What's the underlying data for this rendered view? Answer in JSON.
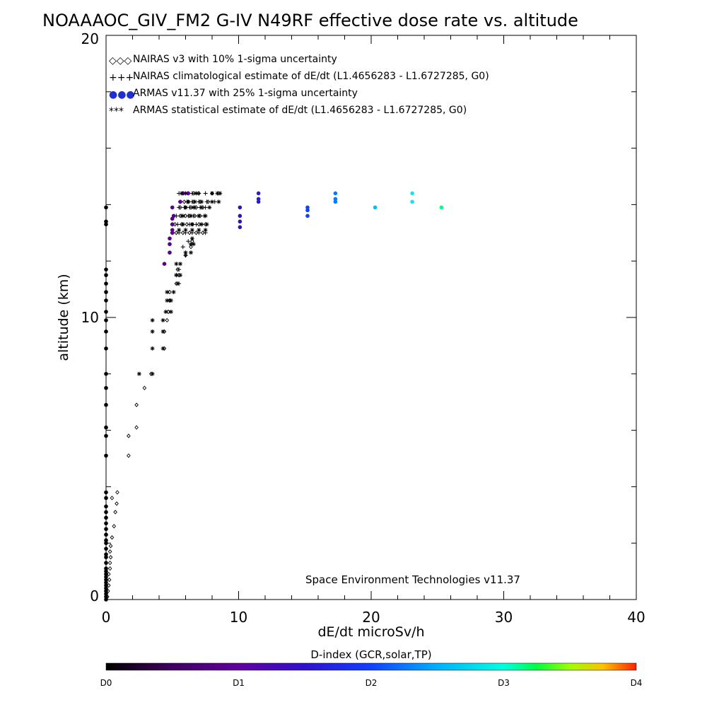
{
  "chart_data": {
    "type": "scatter",
    "title": "NOAAAOC_GIV_FM2 G-IV   N49RF  effective dose rate vs. altitude",
    "xlabel": "dE/dt microSv/h",
    "ylabel": "altitude (km)",
    "xlim": [
      0,
      40
    ],
    "ylim": [
      0,
      20
    ],
    "x_ticks": [
      "0",
      "10",
      "20",
      "30",
      "40"
    ],
    "y_ticks": [
      "0",
      "10",
      "20"
    ],
    "credit": "Space Environment Technologies v11.37",
    "legend_position": "top-left",
    "legend": [
      {
        "symbol": "◇◇◇",
        "label": "NAIRAS v3 with 10% 1-sigma uncertainty"
      },
      {
        "symbol": "+++",
        "label": "NAIRAS climatological estimate of dE/dt (L1.4656283 - L1.6727285, G0)"
      },
      {
        "symbol": "●●●",
        "label": "ARMAS v11.37 with 25% 1-sigma uncertainty"
      },
      {
        "symbol": "***",
        "label": "ARMAS statistical estimate of dE/dt (L1.4656283 - L1.6727285, G0)"
      }
    ],
    "series": [
      {
        "name": "NAIRAS v3 with 10% 1-sigma uncertainty",
        "marker": "diamond",
        "color": "#000000",
        "points": [
          [
            0.1,
            0.1
          ],
          [
            0.15,
            0.3
          ],
          [
            0.2,
            0.5
          ],
          [
            0.25,
            0.7
          ],
          [
            0.2,
            0.9
          ],
          [
            0.3,
            1.1
          ],
          [
            0.3,
            1.3
          ],
          [
            0.35,
            1.5
          ],
          [
            0.3,
            1.7
          ],
          [
            0.35,
            1.9
          ],
          [
            0.45,
            2.2
          ],
          [
            0.6,
            2.6
          ],
          [
            0.7,
            3.1
          ],
          [
            0.8,
            3.4
          ],
          [
            0.85,
            3.8
          ],
          [
            0.45,
            3.6
          ],
          [
            1.7,
            5.1
          ],
          [
            1.7,
            5.8
          ],
          [
            2.3,
            6.1
          ],
          [
            2.3,
            6.9
          ],
          [
            2.9,
            7.5
          ],
          [
            3.4,
            8.0
          ],
          [
            4.4,
            8.9
          ],
          [
            4.4,
            9.5
          ],
          [
            4.6,
            9.9
          ],
          [
            4.7,
            10.2
          ],
          [
            4.8,
            10.6
          ],
          [
            4.8,
            10.9
          ],
          [
            5.3,
            11.2
          ],
          [
            5.5,
            11.5
          ],
          [
            5.4,
            11.7
          ],
          [
            6.0,
            12.2
          ],
          [
            6.4,
            12.5
          ],
          [
            6.5,
            12.7
          ],
          [
            5.3,
            13.0
          ],
          [
            5.8,
            13.0
          ],
          [
            6.3,
            13.0
          ],
          [
            6.8,
            13.0
          ],
          [
            7.3,
            13.0
          ],
          [
            5.2,
            13.3
          ],
          [
            5.7,
            13.3
          ],
          [
            6.1,
            13.3
          ],
          [
            6.5,
            13.3
          ],
          [
            7.0,
            13.3
          ],
          [
            7.5,
            13.3
          ],
          [
            5.6,
            13.6
          ],
          [
            6.0,
            13.6
          ],
          [
            6.3,
            13.6
          ],
          [
            6.7,
            13.6
          ],
          [
            7.1,
            13.6
          ],
          [
            5.6,
            13.9
          ],
          [
            6.0,
            13.9
          ],
          [
            6.4,
            13.9
          ],
          [
            6.8,
            13.9
          ],
          [
            7.3,
            13.9
          ],
          [
            5.9,
            14.1
          ],
          [
            6.2,
            14.1
          ],
          [
            6.6,
            14.1
          ],
          [
            7.1,
            14.1
          ],
          [
            7.7,
            14.1
          ],
          [
            5.8,
            14.4
          ],
          [
            6.2,
            14.4
          ],
          [
            6.6,
            14.4
          ],
          [
            7.0,
            14.4
          ],
          [
            8.0,
            14.4
          ],
          [
            8.5,
            14.4
          ]
        ]
      },
      {
        "name": "NAIRAS climatological estimate of dE/dt (L1.4656283 - L1.6727285, G0)",
        "marker": "plus",
        "color": "#000000",
        "points": [
          [
            4.8,
            10.6
          ],
          [
            5.5,
            11.2
          ],
          [
            5.3,
            11.5
          ],
          [
            5.5,
            11.7
          ],
          [
            6.0,
            12.2
          ],
          [
            5.8,
            12.5
          ],
          [
            6.2,
            12.7
          ],
          [
            5.0,
            13.0
          ],
          [
            5.5,
            13.0
          ],
          [
            6.0,
            13.0
          ],
          [
            6.5,
            13.0
          ],
          [
            7.0,
            13.0
          ],
          [
            7.5,
            13.0
          ],
          [
            5.0,
            13.3
          ],
          [
            5.4,
            13.3
          ],
          [
            5.8,
            13.3
          ],
          [
            6.3,
            13.3
          ],
          [
            6.8,
            13.3
          ],
          [
            7.2,
            13.3
          ],
          [
            5.3,
            13.6
          ],
          [
            5.7,
            13.6
          ],
          [
            6.2,
            13.6
          ],
          [
            6.6,
            13.6
          ],
          [
            7.0,
            13.6
          ],
          [
            7.4,
            13.6
          ],
          [
            5.5,
            13.9
          ],
          [
            5.9,
            13.9
          ],
          [
            6.3,
            13.9
          ],
          [
            6.7,
            13.9
          ],
          [
            7.1,
            13.9
          ],
          [
            7.5,
            13.9
          ],
          [
            5.6,
            14.1
          ],
          [
            6.1,
            14.1
          ],
          [
            6.5,
            14.1
          ],
          [
            7.0,
            14.1
          ],
          [
            7.6,
            14.1
          ],
          [
            8.2,
            14.1
          ],
          [
            5.5,
            14.4
          ],
          [
            6.0,
            14.4
          ],
          [
            6.5,
            14.4
          ],
          [
            7.0,
            14.4
          ],
          [
            7.5,
            14.4
          ],
          [
            8.0,
            14.4
          ],
          [
            8.4,
            14.4
          ]
        ]
      },
      {
        "name": "ARMAS v11.37 with 25% 1-sigma uncertainty",
        "marker": "dot",
        "color": "#2020c0",
        "points": [
          [
            0,
            0.0
          ],
          [
            0,
            0.1
          ],
          [
            0,
            0.2
          ],
          [
            0,
            0.3
          ],
          [
            0,
            0.4
          ],
          [
            0,
            0.5
          ],
          [
            0,
            0.6
          ],
          [
            0,
            0.7
          ],
          [
            0,
            0.8
          ],
          [
            0,
            0.9
          ],
          [
            0,
            1.0
          ],
          [
            0,
            1.1
          ],
          [
            0,
            1.3
          ],
          [
            0,
            1.5
          ],
          [
            0,
            1.6
          ],
          [
            0,
            1.8
          ],
          [
            0,
            2.0
          ],
          [
            0,
            2.1
          ],
          [
            0,
            2.3
          ],
          [
            0,
            2.5
          ],
          [
            0,
            2.7
          ],
          [
            0,
            2.9
          ],
          [
            0,
            3.1
          ],
          [
            0,
            3.3
          ],
          [
            0,
            3.6
          ],
          [
            0,
            3.8
          ],
          [
            0,
            5.1
          ],
          [
            0,
            5.8
          ],
          [
            0,
            6.1
          ],
          [
            0,
            6.9
          ],
          [
            0,
            7.5
          ],
          [
            0,
            8.0
          ],
          [
            0,
            8.9
          ],
          [
            0,
            9.5
          ],
          [
            0,
            9.9
          ],
          [
            0,
            10.2
          ],
          [
            0,
            10.6
          ],
          [
            0,
            10.9
          ],
          [
            0,
            11.2
          ],
          [
            0,
            11.5
          ],
          [
            0,
            11.7
          ],
          [
            0,
            13.3
          ],
          [
            0,
            13.4
          ],
          [
            0,
            13.9
          ],
          [
            4.4,
            11.9
          ],
          [
            4.8,
            12.3
          ],
          [
            4.8,
            12.6
          ],
          [
            4.8,
            12.8
          ],
          [
            5.0,
            13.0
          ],
          [
            5.0,
            13.1
          ],
          [
            5.0,
            13.3
          ],
          [
            5.0,
            13.5
          ],
          [
            5.1,
            13.6
          ],
          [
            5.0,
            13.9
          ],
          [
            5.6,
            14.1
          ],
          [
            5.8,
            14.4
          ],
          [
            6.2,
            14.4
          ],
          [
            10.1,
            13.2
          ],
          [
            10.1,
            13.4
          ],
          [
            10.1,
            13.6
          ],
          [
            10.1,
            13.9
          ],
          [
            11.5,
            14.1
          ],
          [
            11.5,
            14.2
          ],
          [
            11.5,
            14.4
          ],
          [
            15.2,
            13.6
          ],
          [
            15.2,
            13.8
          ],
          [
            15.2,
            13.9
          ],
          [
            17.3,
            14.1
          ],
          [
            17.3,
            14.2
          ],
          [
            17.3,
            14.4
          ],
          [
            20.3,
            13.9
          ],
          [
            23.1,
            14.1
          ],
          [
            23.1,
            14.4
          ],
          [
            25.3,
            13.9
          ]
        ]
      },
      {
        "name": "ARMAS statistical estimate of dE/dt (L1.4656283 - L1.6727285, G0)",
        "marker": "asterisk",
        "color": "#000000",
        "points": [
          [
            2.5,
            8.0
          ],
          [
            3.5,
            8.0
          ],
          [
            3.5,
            8.9
          ],
          [
            4.3,
            8.9
          ],
          [
            3.5,
            9.5
          ],
          [
            4.3,
            9.5
          ],
          [
            3.5,
            9.9
          ],
          [
            4.3,
            9.9
          ],
          [
            4.5,
            10.2
          ],
          [
            4.9,
            10.2
          ],
          [
            4.6,
            10.6
          ],
          [
            4.9,
            10.6
          ],
          [
            4.6,
            10.9
          ],
          [
            5.1,
            10.9
          ],
          [
            5.4,
            11.2
          ],
          [
            5.3,
            11.5
          ],
          [
            5.6,
            11.5
          ],
          [
            5.3,
            11.9
          ],
          [
            5.6,
            11.9
          ],
          [
            6.0,
            12.3
          ],
          [
            6.4,
            12.3
          ],
          [
            6.4,
            12.6
          ],
          [
            6.6,
            12.6
          ],
          [
            6.5,
            12.8
          ],
          [
            6.5,
            13.1
          ],
          [
            5.5,
            13.1
          ],
          [
            6.0,
            13.1
          ],
          [
            7.0,
            13.1
          ],
          [
            7.5,
            13.1
          ],
          [
            5.8,
            13.3
          ],
          [
            6.5,
            13.3
          ],
          [
            7.2,
            13.3
          ],
          [
            7.6,
            13.3
          ],
          [
            5.8,
            13.6
          ],
          [
            6.4,
            13.6
          ],
          [
            7.0,
            13.6
          ],
          [
            7.5,
            13.6
          ],
          [
            6.0,
            13.9
          ],
          [
            6.6,
            13.9
          ],
          [
            7.2,
            13.9
          ],
          [
            7.8,
            13.9
          ],
          [
            6.2,
            14.1
          ],
          [
            6.7,
            14.1
          ],
          [
            7.2,
            14.1
          ],
          [
            8.0,
            14.1
          ],
          [
            8.5,
            14.1
          ],
          [
            5.7,
            14.4
          ],
          [
            6.0,
            14.4
          ],
          [
            6.8,
            14.4
          ],
          [
            8.0,
            14.4
          ],
          [
            8.4,
            14.4
          ],
          [
            8.6,
            14.4
          ]
        ]
      }
    ],
    "colorbar": {
      "title": "D-index (GCR,solar,TP)",
      "range": [
        0,
        4
      ],
      "labels": [
        {
          "text": "D0",
          "value": 0
        },
        {
          "text": "D1",
          "value": 1
        },
        {
          "text": "D2",
          "value": 2
        },
        {
          "text": "D3",
          "value": 3
        },
        {
          "text": "D4",
          "value": 4
        }
      ],
      "stops": [
        {
          "value": 0.0,
          "color": "#000000"
        },
        {
          "value": 0.5,
          "color": "#400060"
        },
        {
          "value": 1.0,
          "color": "#6000a0"
        },
        {
          "value": 1.5,
          "color": "#3010d0"
        },
        {
          "value": 2.0,
          "color": "#1040ff"
        },
        {
          "value": 2.5,
          "color": "#00b0ff"
        },
        {
          "value": 3.0,
          "color": "#00ffe0"
        },
        {
          "value": 3.25,
          "color": "#00ff40"
        },
        {
          "value": 3.5,
          "color": "#a0ff00"
        },
        {
          "value": 3.75,
          "color": "#ffc000"
        },
        {
          "value": 4.0,
          "color": "#ff2000"
        }
      ]
    }
  }
}
